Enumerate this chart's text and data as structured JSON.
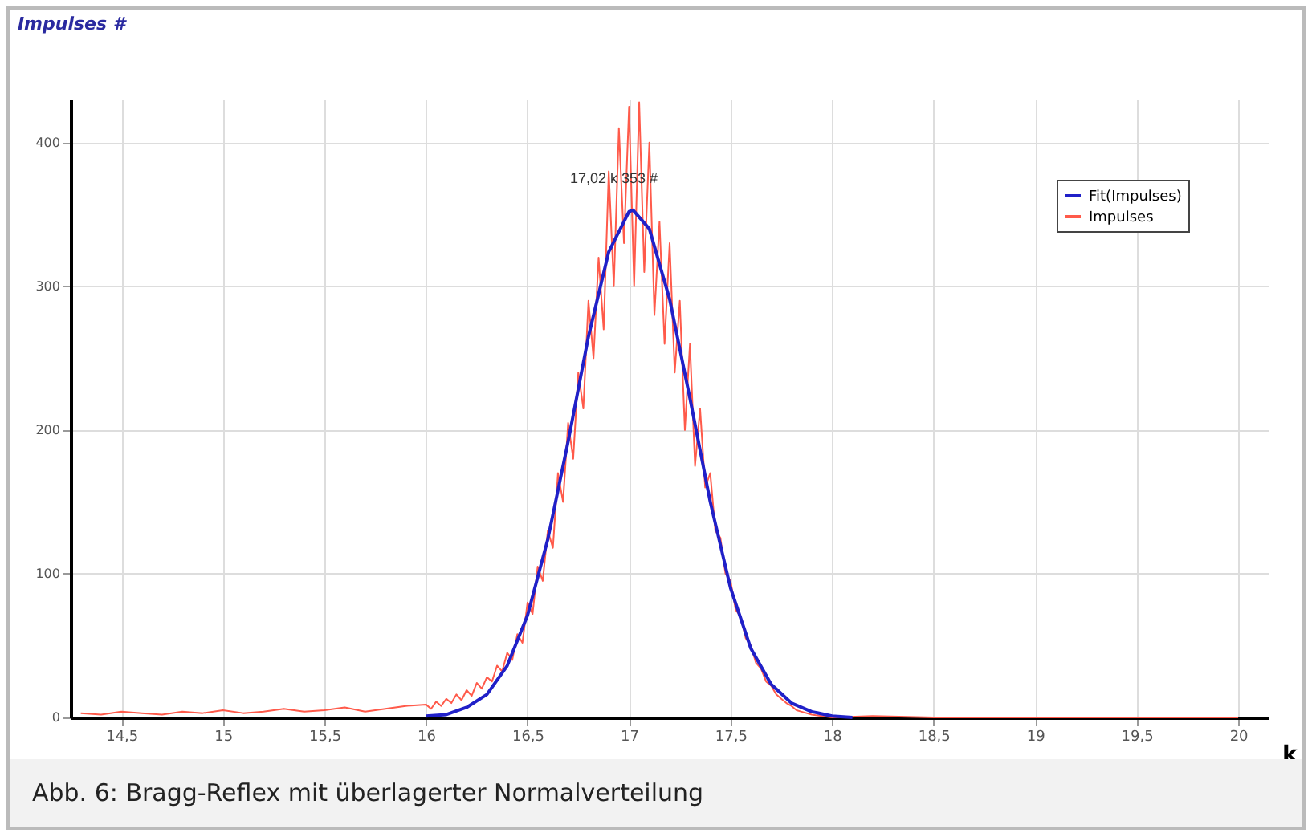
{
  "chart_data": {
    "type": "line",
    "ylabel": "Impulses #",
    "xlabel": "k",
    "xlim": [
      14.25,
      20.15
    ],
    "ylim": [
      0,
      430
    ],
    "xticks": [
      {
        "value": 14.5,
        "label": "14,5"
      },
      15,
      {
        "value": 15.5,
        "label": "15,5"
      },
      16,
      {
        "value": 16.5,
        "label": "16,5"
      },
      17,
      {
        "value": 17.5,
        "label": "17,5"
      },
      18,
      {
        "value": 18.5,
        "label": "18,5"
      },
      19,
      {
        "value": 19.5,
        "label": "19,5"
      },
      20
    ],
    "yticks": [
      0,
      100,
      200,
      300,
      400
    ],
    "grid": true,
    "legend": "top right",
    "marker": "none",
    "line_style": "solid",
    "annotations": [
      {
        "text": "17,02 k 353 #",
        "x": 17.02,
        "y": 353
      },
      "Abb. 6: Bragg-Reflex mit überlagerter Normalverteilung"
    ],
    "series": [
      {
        "name": "Fit(Impulses)",
        "color": "#2020c8",
        "x": [
          16.0,
          16.1,
          16.2,
          16.3,
          16.4,
          16.5,
          16.6,
          16.7,
          16.8,
          16.9,
          17.0,
          17.02,
          17.1,
          17.2,
          17.3,
          17.4,
          17.5,
          17.6,
          17.7,
          17.8,
          17.9,
          18.0,
          18.1
        ],
        "values": [
          1,
          2,
          7,
          16,
          36,
          71,
          124,
          192,
          265,
          324,
          352,
          353,
          340,
          291,
          222,
          150,
          90,
          48,
          23,
          10,
          4,
          1,
          0
        ]
      },
      {
        "name": "Impulses",
        "color": "#ff5a4a",
        "x": [
          14.3,
          14.4,
          14.5,
          14.6,
          14.7,
          14.8,
          14.9,
          15.0,
          15.1,
          15.2,
          15.3,
          15.4,
          15.5,
          15.6,
          15.7,
          15.8,
          15.9,
          16.0,
          16.025,
          16.05,
          16.075,
          16.1,
          16.125,
          16.15,
          16.175,
          16.2,
          16.225,
          16.25,
          16.275,
          16.3,
          16.325,
          16.35,
          16.375,
          16.4,
          16.425,
          16.45,
          16.475,
          16.5,
          16.525,
          16.55,
          16.575,
          16.6,
          16.625,
          16.65,
          16.675,
          16.7,
          16.725,
          16.75,
          16.775,
          16.8,
          16.825,
          16.85,
          16.875,
          16.9,
          16.925,
          16.95,
          16.975,
          17.0,
          17.025,
          17.05,
          17.075,
          17.1,
          17.125,
          17.15,
          17.175,
          17.2,
          17.225,
          17.25,
          17.275,
          17.3,
          17.325,
          17.35,
          17.375,
          17.4,
          17.425,
          17.45,
          17.475,
          17.5,
          17.525,
          17.55,
          17.575,
          17.6,
          17.625,
          17.65,
          17.675,
          17.7,
          17.725,
          17.75,
          17.775,
          17.8,
          17.825,
          17.85,
          17.9,
          17.95,
          18.0,
          18.2,
          18.5,
          19.0,
          19.5,
          20.0
        ],
        "values": [
          3,
          2,
          4,
          3,
          2,
          4,
          3,
          5,
          3,
          4,
          6,
          4,
          5,
          7,
          4,
          6,
          8,
          9,
          6,
          11,
          8,
          13,
          10,
          16,
          12,
          19,
          15,
          24,
          20,
          28,
          25,
          36,
          32,
          45,
          40,
          58,
          52,
          80,
          72,
          105,
          95,
          130,
          118,
          170,
          150,
          205,
          180,
          240,
          215,
          290,
          250,
          320,
          270,
          380,
          300,
          410,
          330,
          425,
          300,
          428,
          310,
          400,
          280,
          345,
          260,
          330,
          240,
          290,
          200,
          260,
          175,
          215,
          160,
          170,
          130,
          125,
          100,
          95,
          75,
          70,
          55,
          50,
          38,
          34,
          25,
          22,
          16,
          13,
          10,
          8,
          5,
          4,
          2,
          1,
          0,
          1,
          0,
          0,
          0,
          0
        ]
      }
    ]
  }
}
